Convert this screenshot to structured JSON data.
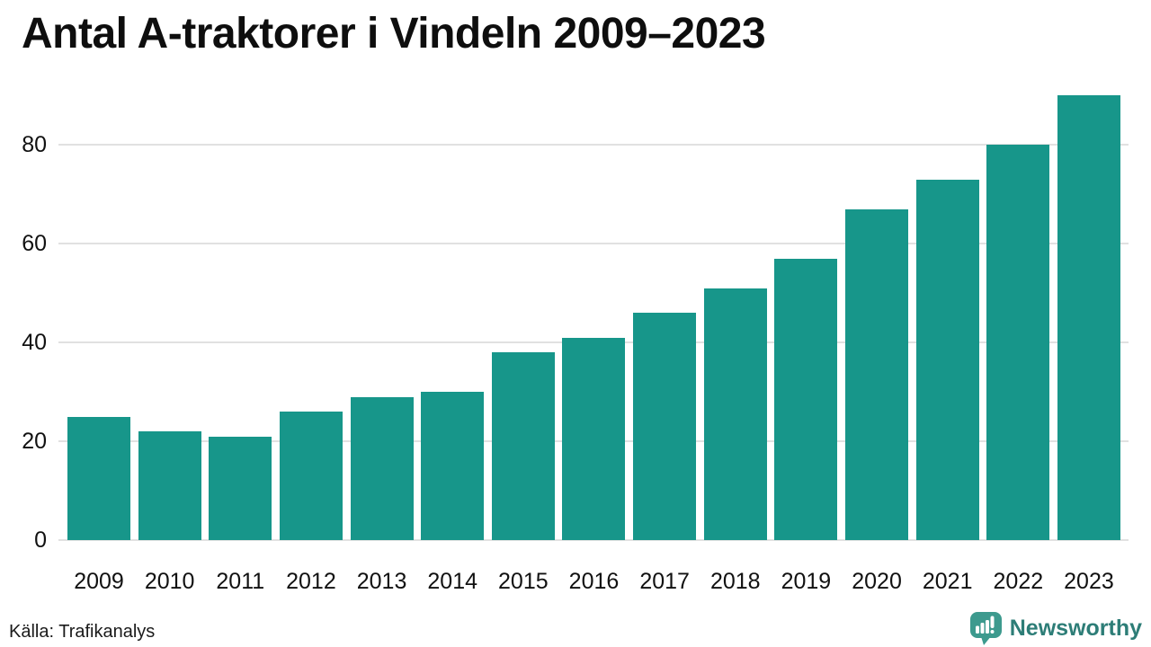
{
  "page": {
    "background": "#ffffff"
  },
  "header": {
    "title": "Antal A-traktorer i Vindeln 2009–2023"
  },
  "footer": {
    "source_label": "Källa: Trafikanalys",
    "brand": {
      "name": "Newsworthy",
      "icon": "newsworthy-speech-bubble-chart-icon",
      "icon_color": "#3d9a8e",
      "text_color": "#2d7d77"
    }
  },
  "colors": {
    "bar": "#17968a",
    "gridline": "#e1e1e1",
    "axis_text": "#111111"
  },
  "chart_data": {
    "type": "bar",
    "title": "Antal A-traktorer i Vindeln 2009–2023",
    "categories": [
      "2009",
      "2010",
      "2011",
      "2012",
      "2013",
      "2014",
      "2015",
      "2016",
      "2017",
      "2018",
      "2019",
      "2020",
      "2021",
      "2022",
      "2023"
    ],
    "values": [
      25,
      22,
      21,
      26,
      29,
      30,
      38,
      41,
      46,
      51,
      57,
      67,
      73,
      80,
      90
    ],
    "xlabel": "",
    "ylabel": "",
    "ylim": [
      0,
      90
    ],
    "yticks": [
      0,
      20,
      40,
      60,
      80
    ],
    "grid": true,
    "legend_position": "none",
    "bar_color": "#17968a",
    "source": "Källa: Trafikanalys"
  }
}
